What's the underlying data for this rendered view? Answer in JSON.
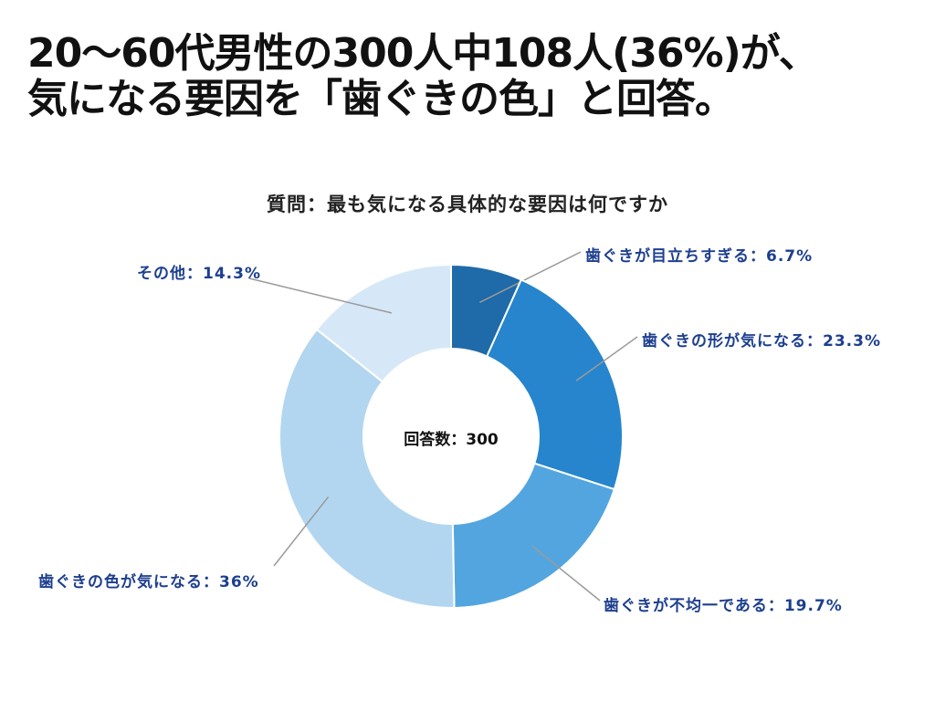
{
  "headline": {
    "line1": "20〜60代男性の300人中108人(36%)が、",
    "line2": "気になる要因を「歯ぐきの色」と回答。"
  },
  "chart_data": {
    "type": "pie",
    "donut": true,
    "title": "質問：最も気になる具体的な要因は何ですか",
    "center_text": "回答数：300",
    "slices": [
      {
        "label": "歯ぐきが目立ちすぎる",
        "value": 6.7,
        "display": "歯ぐきが目立ちすぎる：6.7%",
        "color": "#1f6aa8"
      },
      {
        "label": "歯ぐきの形が気になる",
        "value": 23.3,
        "display": "歯ぐきの形が気になる：23.3%",
        "color": "#2685cc"
      },
      {
        "label": "歯ぐきが不均一である",
        "value": 19.7,
        "display": "歯ぐきが不均一である：19.7%",
        "color": "#53a5e0"
      },
      {
        "label": "歯ぐきの色が気になる",
        "value": 36,
        "display": "歯ぐきの色が気になる：36%",
        "color": "#b2d6ef"
      },
      {
        "label": "その他",
        "value": 14.3,
        "display": "その他：14.3%",
        "color": "#d6e8f7"
      }
    ]
  }
}
